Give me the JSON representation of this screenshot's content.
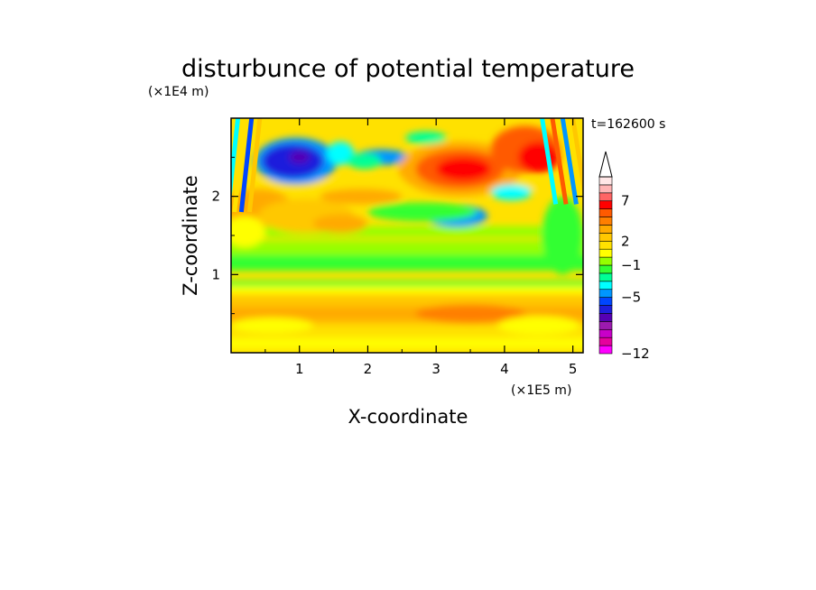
{
  "chart_data": {
    "type": "heatmap",
    "title": "disturbunce of potential temperature",
    "xlabel": "X-coordinate",
    "ylabel": "Z-coordinate",
    "x_unit": "(×1E5 m)",
    "y_unit": "(×1E4 m)",
    "time_label": "t=162600 s",
    "xlim": [
      0,
      5.15
    ],
    "ylim": [
      0,
      3.0
    ],
    "x_ticks": [
      "1",
      "2",
      "3",
      "4",
      "5"
    ],
    "y_ticks": [
      "1",
      "2"
    ],
    "colorbar": {
      "levels": [
        -12,
        -11,
        -10,
        -9,
        -8,
        -7,
        -6,
        -5,
        -4,
        -3,
        -2,
        -1,
        0,
        1,
        2,
        3,
        4,
        5,
        6,
        7,
        8,
        9
      ],
      "labeled_levels": [
        "7",
        "2",
        "−1",
        "−5",
        "−12"
      ],
      "extend": "max",
      "colors": [
        "#ff00ff",
        "#e6009e",
        "#c800c8",
        "#9b1aaf",
        "#5500b4",
        "#1e1edc",
        "#0046ff",
        "#0096ff",
        "#00ffff",
        "#00ff96",
        "#32ff32",
        "#96ff00",
        "#ffff00",
        "#ffe100",
        "#ffc800",
        "#ffaa00",
        "#ff7f00",
        "#ff5a00",
        "#ff0000",
        "#ff6464",
        "#ffb4b4",
        "#ffe6e6"
      ]
    },
    "features": [
      {
        "desc": "negative core",
        "x": 0.95,
        "z": 2.45,
        "value": -7
      },
      {
        "desc": "negative core",
        "x": 2.25,
        "z": 2.5,
        "value": -4
      },
      {
        "desc": "positive core",
        "x": 3.4,
        "z": 2.35,
        "value": 7
      },
      {
        "desc": "positive core",
        "x": 4.6,
        "z": 2.6,
        "value": 6
      },
      {
        "desc": "negative core",
        "x": 3.3,
        "z": 1.75,
        "value": -4
      },
      {
        "desc": "positive band",
        "x": 1.0,
        "z": 1.85,
        "value": 3
      },
      {
        "desc": "negative band",
        "x": 2.5,
        "z": 1.15,
        "value": -1
      },
      {
        "desc": "positive band",
        "x": 2.6,
        "z": 0.55,
        "value": 3
      }
    ]
  }
}
